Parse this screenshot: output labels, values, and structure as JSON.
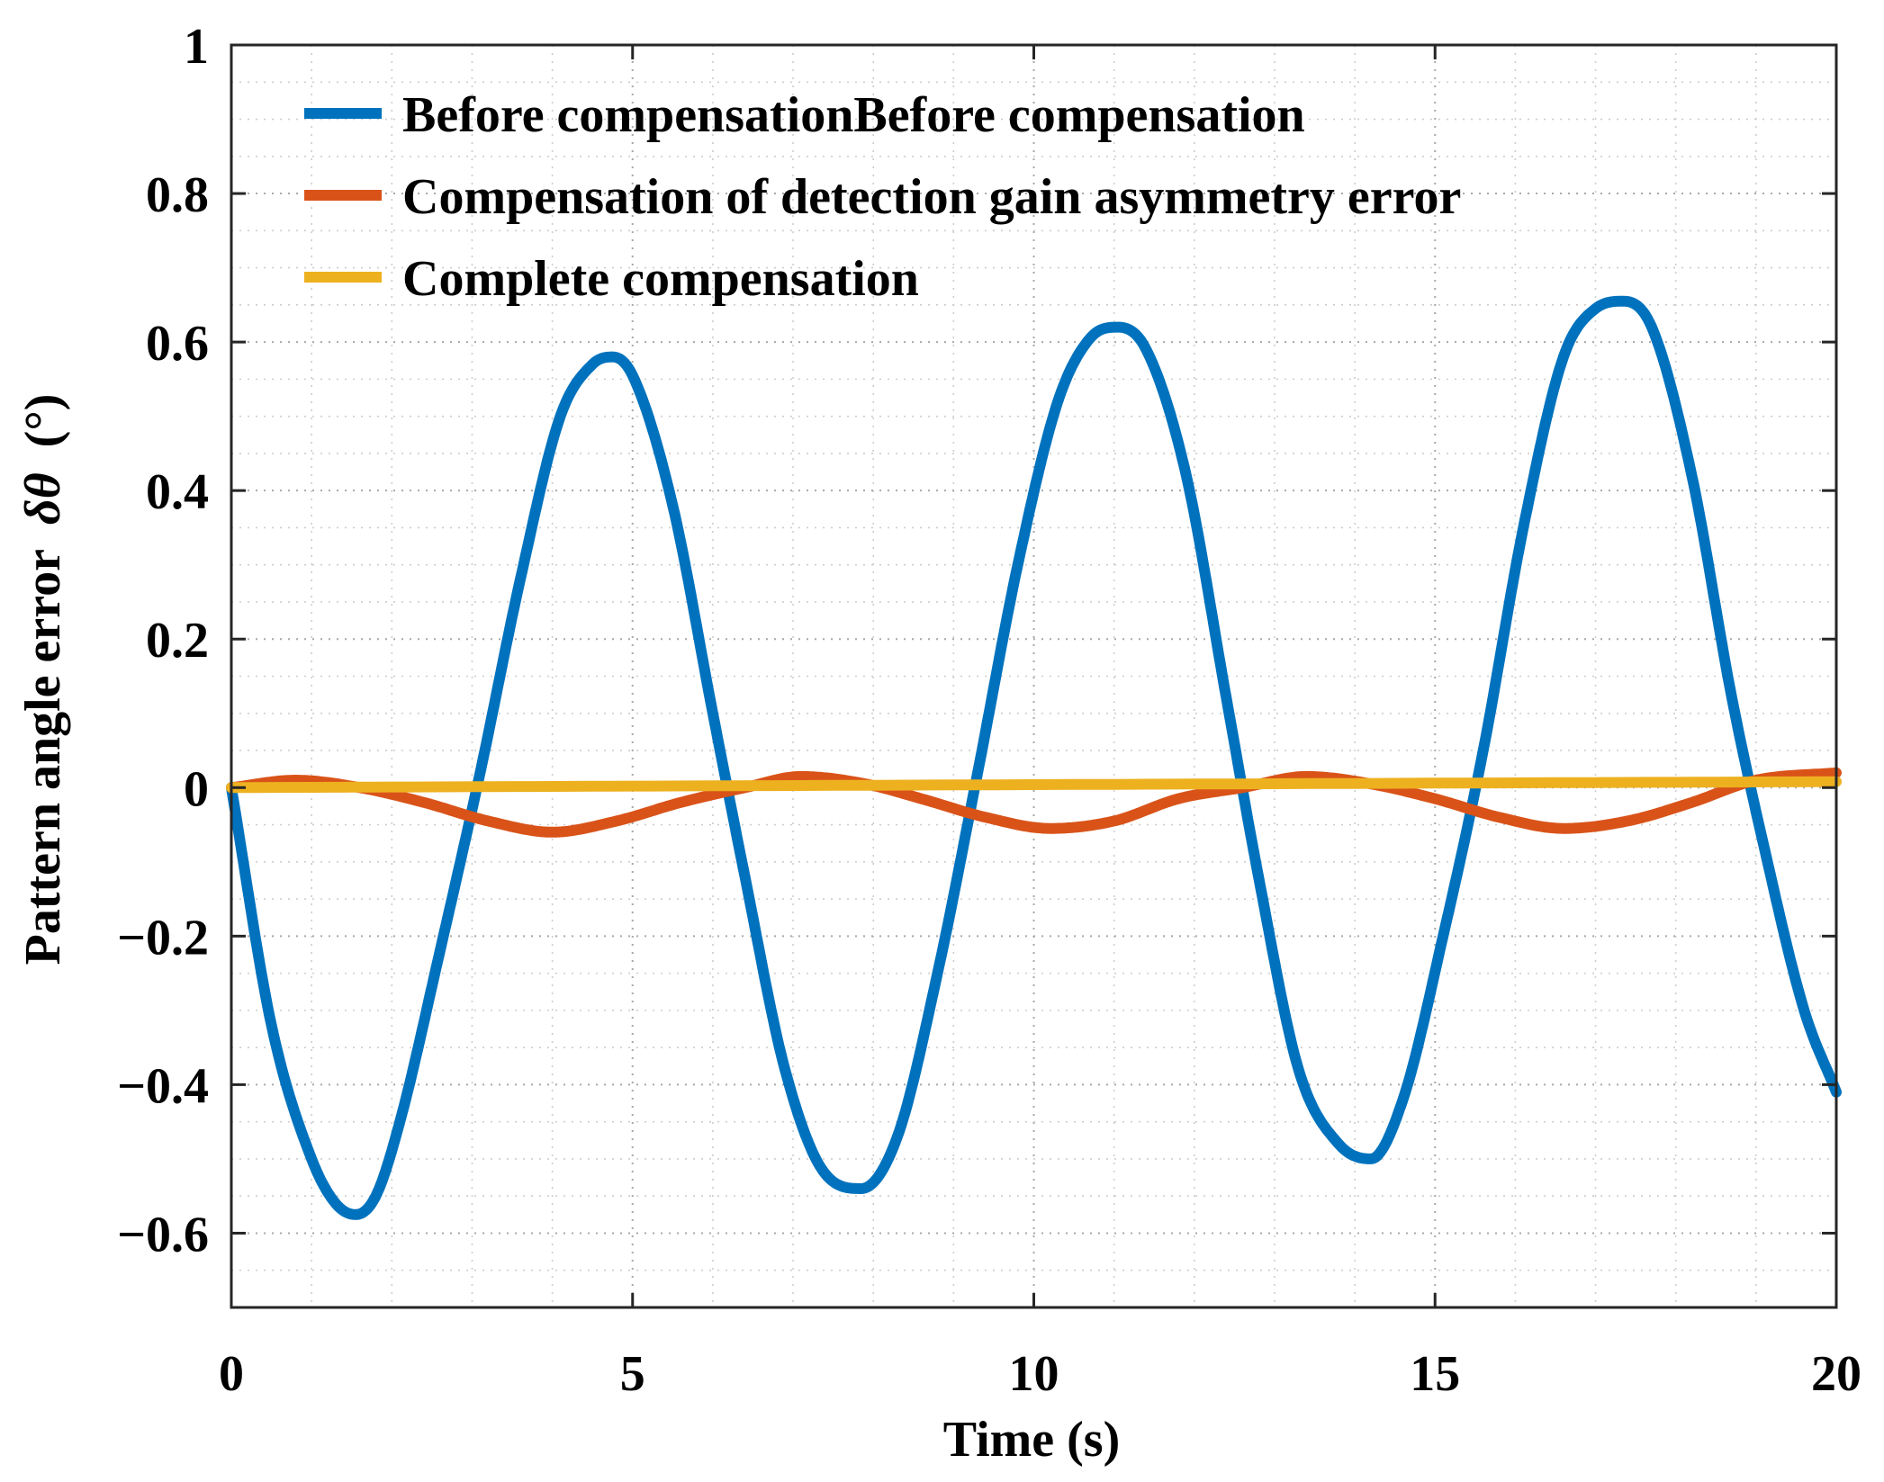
{
  "chart_data": {
    "type": "line",
    "title": "",
    "xlabel": "Time (s)",
    "ylabel": "Pattern angle error",
    "ylabel_symbol": "δθ",
    "ylabel_unit": "(°)",
    "xlim": [
      0,
      20
    ],
    "ylim": [
      -0.7,
      1.0
    ],
    "xticks": [
      0,
      5,
      10,
      15,
      20
    ],
    "xtick_labels": [
      "0",
      "5",
      "10",
      "15",
      "20"
    ],
    "yticks": [
      -0.6,
      -0.4,
      -0.2,
      0,
      0.2,
      0.4,
      0.6,
      0.8,
      1
    ],
    "ytick_labels": [
      "−0.6",
      "−0.4",
      "−0.2",
      "0",
      "0.2",
      "0.4",
      "0.6",
      "0.8",
      "1"
    ],
    "grid": true,
    "minor_grid": true,
    "legend_position": "top-left",
    "series": [
      {
        "name": "Before compensationBefore compensation",
        "color": "#0072BD",
        "x": [
          0,
          0.5,
          1.0,
          1.3,
          1.55,
          1.8,
          2.1,
          2.6,
          3.1,
          3.6,
          4.1,
          4.5,
          4.75,
          5.0,
          5.5,
          6.0,
          6.4,
          6.9,
          7.4,
          7.85,
          8.3,
          8.8,
          9.3,
          9.8,
          10.3,
          10.7,
          11.05,
          11.4,
          11.9,
          12.4,
          12.8,
          13.3,
          13.8,
          14.2,
          14.6,
          15.1,
          15.6,
          16.1,
          16.6,
          17.0,
          17.35,
          17.7,
          18.2,
          18.7,
          19.1,
          19.6,
          20.0
        ],
        "y": [
          0,
          -0.32,
          -0.5,
          -0.56,
          -0.575,
          -0.55,
          -0.45,
          -0.22,
          0.02,
          0.28,
          0.5,
          0.57,
          0.58,
          0.555,
          0.38,
          0.1,
          -0.12,
          -0.38,
          -0.52,
          -0.54,
          -0.47,
          -0.25,
          0.02,
          0.3,
          0.52,
          0.605,
          0.62,
          0.59,
          0.42,
          0.12,
          -0.12,
          -0.38,
          -0.48,
          -0.5,
          -0.42,
          -0.2,
          0.05,
          0.35,
          0.58,
          0.645,
          0.655,
          0.62,
          0.42,
          0.12,
          -0.08,
          -0.3,
          -0.41
        ]
      },
      {
        "name": "Compensation of detection gain asymmetry error",
        "color": "#D95319",
        "x": [
          0,
          0.8,
          1.6,
          2.4,
          3.2,
          4.0,
          4.8,
          5.6,
          6.4,
          7.1,
          7.9,
          8.6,
          9.4,
          10.2,
          11.0,
          11.8,
          12.6,
          13.4,
          14.2,
          15.0,
          15.8,
          16.6,
          17.4,
          18.2,
          19.0,
          20.0
        ],
        "y": [
          0,
          0.01,
          0.0,
          -0.02,
          -0.045,
          -0.06,
          -0.045,
          -0.02,
          0.0,
          0.015,
          0.005,
          -0.015,
          -0.04,
          -0.055,
          -0.045,
          -0.015,
          0.0,
          0.015,
          0.005,
          -0.015,
          -0.04,
          -0.055,
          -0.045,
          -0.02,
          0.01,
          0.02
        ]
      },
      {
        "name": "Complete compensation",
        "color": "#EDB120",
        "x": [
          0,
          5,
          10,
          15,
          20
        ],
        "y": [
          0,
          0.002,
          0.004,
          0.006,
          0.008
        ]
      }
    ]
  }
}
